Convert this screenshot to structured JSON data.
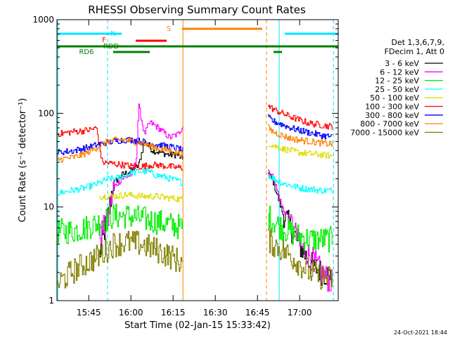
{
  "chart_data": {
    "type": "line",
    "title": "RHESSI Observing Summary Count Rates",
    "xlabel": "Start Time (02-Jan-15 15:33:42)",
    "ylabel": "Count Rate (s⁻¹ detector⁻¹)",
    "y_scale": "log",
    "ylim": [
      1,
      1000
    ],
    "xlim_min": [
      0,
      100
    ],
    "x_tick_labels": [
      "15:45",
      "16:00",
      "16:15",
      "16:30",
      "16:45",
      "17:00"
    ],
    "x_tick_min": [
      11.3,
      26.3,
      41.3,
      56.3,
      71.3,
      86.3
    ],
    "y_tick_labels": [
      "1",
      "10",
      "100",
      "1000"
    ],
    "y_tick_values": [
      1,
      10,
      100,
      1000
    ],
    "legend": {
      "header": [
        "Det 1,3,6,7,9,",
        "FDecim 1, Att 0"
      ],
      "placement": "right"
    },
    "timestamp": "24-Oct-2021 18:44",
    "state_bars": [
      {
        "label": "N",
        "color": "#00e5ff",
        "segments": [
          [
            0,
            23
          ],
          [
            81,
            100
          ]
        ]
      },
      {
        "label": "F",
        "color": "#ff0000",
        "segments": [
          [
            28,
            39
          ]
        ]
      },
      {
        "label": "S",
        "color": "#ff8000",
        "segments": [
          [
            44.5,
            73
          ]
        ]
      },
      {
        "label": "RDD",
        "color": "#008000",
        "segments": [
          [
            0,
            100
          ]
        ]
      },
      {
        "label": "RD6",
        "color": "#008000",
        "segments": [
          [
            20,
            33
          ],
          [
            77,
            80
          ]
        ]
      }
    ],
    "vlines": [
      {
        "x": 0.3,
        "color": "#00e5ff",
        "dash": false
      },
      {
        "x": 18,
        "color": "#00e5ff",
        "dash": true
      },
      {
        "x": 44.8,
        "color": "#ff8000",
        "dash": false
      },
      {
        "x": 74.5,
        "color": "#ff8000",
        "dash": true
      },
      {
        "x": 79,
        "color": "#00e5ff",
        "dash": false
      },
      {
        "x": 98.3,
        "color": "#00e5ff",
        "dash": true
      }
    ],
    "gap": [
      45,
      75
    ],
    "series": [
      {
        "name": "3 - 6 keV",
        "color": "#000000",
        "points": [
          [
            15,
            3
          ],
          [
            18,
            8
          ],
          [
            20,
            18
          ],
          [
            23,
            22
          ],
          [
            26,
            24
          ],
          [
            29,
            28
          ],
          [
            31,
            50
          ],
          [
            34,
            40
          ],
          [
            37,
            38
          ],
          [
            40,
            36
          ],
          [
            43,
            36
          ],
          [
            44.8,
            32
          ],
          [
            75,
            24
          ],
          [
            77,
            18
          ],
          [
            80,
            9
          ],
          [
            83,
            6
          ],
          [
            86,
            4
          ],
          [
            90,
            2.5
          ],
          [
            94,
            2
          ],
          [
            98,
            1.8
          ]
        ]
      },
      {
        "name": "6 - 12 keV",
        "color": "#ff00ff",
        "points": [
          [
            15,
            5
          ],
          [
            18,
            7
          ],
          [
            20,
            16
          ],
          [
            23,
            20
          ],
          [
            26,
            22
          ],
          [
            28,
            30
          ],
          [
            29,
            120
          ],
          [
            31,
            60
          ],
          [
            33,
            80
          ],
          [
            36,
            70
          ],
          [
            40,
            55
          ],
          [
            43,
            60
          ],
          [
            44.8,
            75
          ],
          [
            75,
            25
          ],
          [
            77,
            20
          ],
          [
            80,
            10
          ],
          [
            83,
            7
          ],
          [
            86,
            4
          ],
          [
            90,
            3
          ],
          [
            94,
            2
          ],
          [
            98,
            1.5
          ]
        ]
      },
      {
        "name": "12 - 25 keV",
        "color": "#00ee00",
        "points": [
          [
            0,
            5.5
          ],
          [
            5,
            5.5
          ],
          [
            10,
            6
          ],
          [
            13,
            6.5
          ],
          [
            16,
            7
          ],
          [
            20,
            8
          ],
          [
            25,
            8
          ],
          [
            30,
            7.5
          ],
          [
            35,
            7
          ],
          [
            40,
            6.5
          ],
          [
            44.8,
            6
          ],
          [
            75,
            8
          ],
          [
            77,
            7
          ],
          [
            80,
            6
          ],
          [
            85,
            5
          ],
          [
            90,
            4.5
          ],
          [
            98,
            4.5
          ]
        ]
      },
      {
        "name": "25 - 50 keV",
        "color": "#00ffff",
        "points": [
          [
            0,
            14
          ],
          [
            5,
            15
          ],
          [
            10,
            16
          ],
          [
            15,
            18
          ],
          [
            18,
            20
          ],
          [
            20,
            20
          ],
          [
            23,
            21
          ],
          [
            26,
            23
          ],
          [
            29,
            24
          ],
          [
            32,
            24
          ],
          [
            35,
            22
          ],
          [
            38,
            21
          ],
          [
            40,
            20
          ],
          [
            43,
            19
          ],
          [
            44.8,
            18
          ],
          [
            75,
            22
          ],
          [
            77,
            20
          ],
          [
            80,
            18
          ],
          [
            83,
            17
          ],
          [
            86,
            16
          ],
          [
            90,
            15.5
          ],
          [
            94,
            15
          ],
          [
            98,
            15
          ]
        ]
      },
      {
        "name": "50 - 100 keV",
        "color": "#dddd00",
        "points": [
          [
            15,
            13
          ],
          [
            20,
            13
          ],
          [
            25,
            13.5
          ],
          [
            30,
            13
          ],
          [
            35,
            13
          ],
          [
            40,
            12.5
          ],
          [
            44.8,
            12
          ],
          [
            75,
            48
          ],
          [
            77,
            45
          ],
          [
            80,
            42
          ],
          [
            83,
            40
          ],
          [
            86,
            38
          ],
          [
            90,
            37
          ],
          [
            94,
            36
          ],
          [
            98,
            35
          ]
        ]
      },
      {
        "name": "100 - 300 keV",
        "color": "#ff0000",
        "points": [
          [
            0,
            60
          ],
          [
            3,
            62
          ],
          [
            6,
            64
          ],
          [
            9,
            65
          ],
          [
            12,
            67
          ],
          [
            14,
            70
          ],
          [
            16,
            30
          ],
          [
            20,
            29
          ],
          [
            24,
            28
          ],
          [
            27,
            27
          ],
          [
            30,
            27
          ],
          [
            33,
            28
          ],
          [
            36,
            28
          ],
          [
            40,
            27
          ],
          [
            44.8,
            26
          ],
          [
            75,
            120
          ],
          [
            77,
            110
          ],
          [
            80,
            100
          ],
          [
            83,
            92
          ],
          [
            86,
            85
          ],
          [
            90,
            78
          ],
          [
            94,
            75
          ],
          [
            98,
            72
          ]
        ]
      },
      {
        "name": "300 - 800 keV",
        "color": "#0000ff",
        "points": [
          [
            0,
            38
          ],
          [
            3,
            39
          ],
          [
            6,
            40
          ],
          [
            9,
            42
          ],
          [
            12,
            44
          ],
          [
            15,
            47
          ],
          [
            18,
            49
          ],
          [
            21,
            51
          ],
          [
            24,
            52
          ],
          [
            27,
            52
          ],
          [
            30,
            50
          ],
          [
            33,
            48
          ],
          [
            36,
            46
          ],
          [
            40,
            44
          ],
          [
            43,
            42
          ],
          [
            44.8,
            40
          ],
          [
            75,
            90
          ],
          [
            77,
            82
          ],
          [
            80,
            76
          ],
          [
            83,
            70
          ],
          [
            86,
            66
          ],
          [
            90,
            62
          ],
          [
            94,
            58
          ],
          [
            98,
            56
          ]
        ]
      },
      {
        "name": "800 - 7000 keV",
        "color": "#ff8000",
        "points": [
          [
            0,
            32
          ],
          [
            3,
            33
          ],
          [
            6,
            34
          ],
          [
            9,
            36
          ],
          [
            12,
            40
          ],
          [
            15,
            45
          ],
          [
            18,
            50
          ],
          [
            21,
            52
          ],
          [
            24,
            52
          ],
          [
            27,
            50
          ],
          [
            30,
            48
          ],
          [
            33,
            45
          ],
          [
            36,
            42
          ],
          [
            40,
            40
          ],
          [
            43,
            38
          ],
          [
            44.8,
            36
          ],
          [
            75,
            70
          ],
          [
            77,
            63
          ],
          [
            80,
            58
          ],
          [
            83,
            54
          ],
          [
            86,
            52
          ],
          [
            90,
            50
          ],
          [
            94,
            48
          ],
          [
            98,
            47
          ]
        ]
      },
      {
        "name": "7000 - 15000 keV",
        "color": "#808000",
        "points": [
          [
            0,
            1.5
          ],
          [
            5,
            2
          ],
          [
            10,
            2.5
          ],
          [
            15,
            3
          ],
          [
            20,
            4
          ],
          [
            25,
            4.2
          ],
          [
            30,
            4
          ],
          [
            35,
            3.5
          ],
          [
            40,
            3
          ],
          [
            44.8,
            2.5
          ],
          [
            75,
            4.5
          ],
          [
            77,
            4
          ],
          [
            80,
            3.5
          ],
          [
            83,
            3
          ],
          [
            86,
            2.5
          ],
          [
            90,
            2
          ],
          [
            94,
            1.8
          ],
          [
            98,
            1.7
          ]
        ]
      }
    ]
  }
}
